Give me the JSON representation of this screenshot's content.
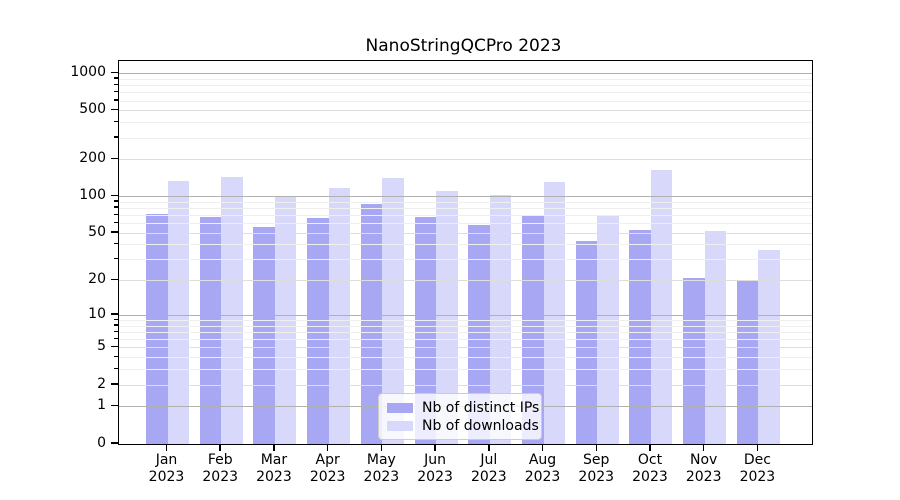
{
  "title": "NanoStringQCPro 2023",
  "chart_data": {
    "type": "bar",
    "title": "NanoStringQCPro 2023",
    "scale": "log1p",
    "categories": [
      "Jan",
      "Feb",
      "Mar",
      "Apr",
      "May",
      "Jun",
      "Jul",
      "Aug",
      "Sep",
      "Oct",
      "Nov",
      "Dec"
    ],
    "category_year": "2023",
    "series": [
      {
        "name": "Nb of distinct IPs",
        "color": "#a7a7f4",
        "values": [
          72,
          68,
          56,
          66,
          86,
          67,
          58,
          70,
          43,
          53,
          21,
          20
        ]
      },
      {
        "name": "Nb of downloads",
        "color": "#d8d8fa",
        "values": [
          132,
          143,
          100,
          116,
          141,
          111,
          103,
          130,
          70,
          162,
          52,
          36
        ]
      }
    ],
    "y_ticks": [
      0,
      1,
      2,
      5,
      10,
      20,
      50,
      100,
      200,
      500,
      1000
    ],
    "ylim": [
      0,
      1260
    ],
    "grid": true,
    "grid_colors": {
      "major": "#b0b0b0",
      "mid": "#dedede",
      "minor": "#efefef"
    },
    "legend_position": "lower center",
    "xlabel": "",
    "ylabel": ""
  }
}
